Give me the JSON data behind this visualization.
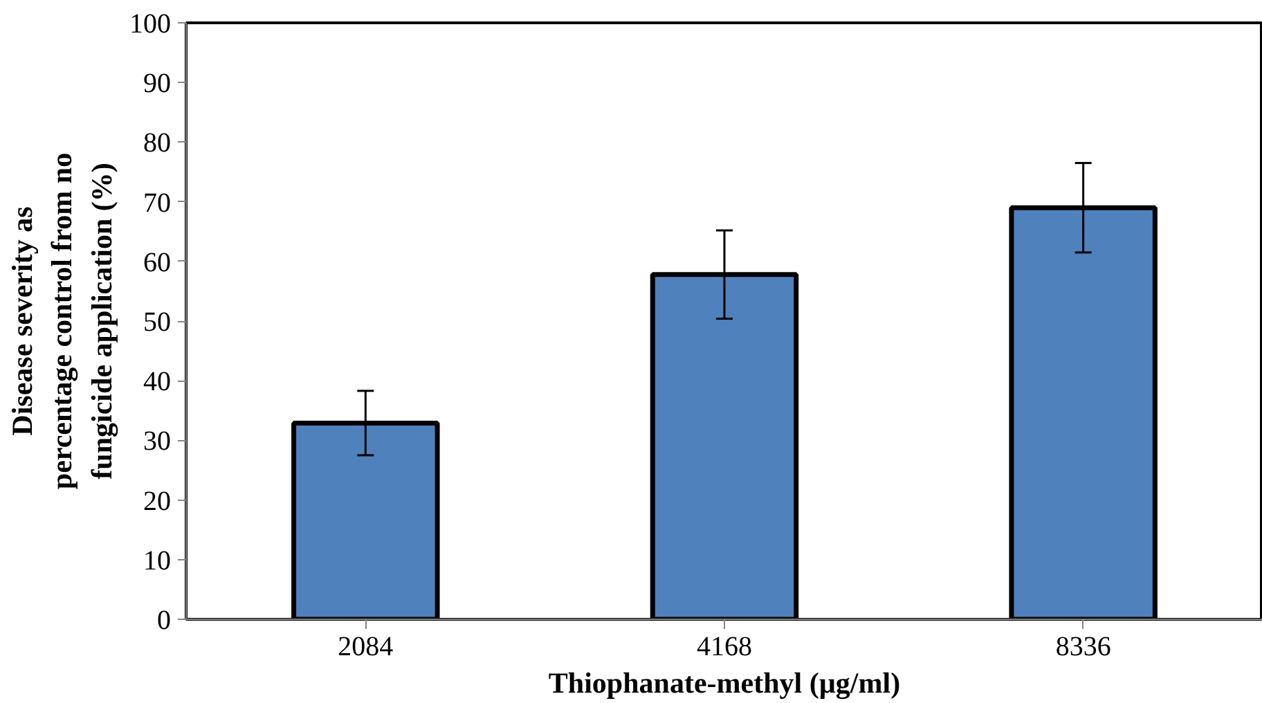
{
  "chart_data": {
    "type": "bar",
    "xlabel": "Thiophanate-methyl (µg/ml)",
    "ylabel": "Disease severity as percentage control from no fungicide application (%)",
    "categories": [
      "2084",
      "4168",
      "8336"
    ],
    "values": [
      32.9,
      57.8,
      69.0
    ],
    "errors": [
      5.4,
      7.4,
      7.5
    ],
    "color": "#4f81bd",
    "ylim": [
      0,
      100
    ],
    "yticks": [
      0,
      10,
      20,
      30,
      40,
      50,
      60,
      70,
      80,
      90,
      100
    ],
    "grid": false
  }
}
